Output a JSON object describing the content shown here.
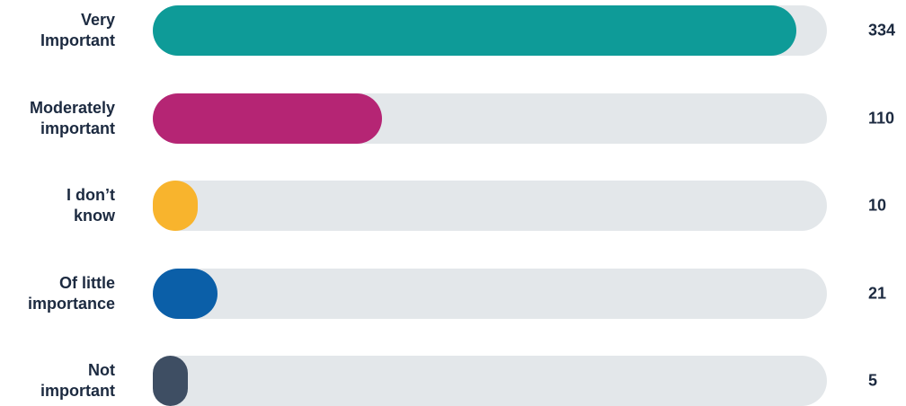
{
  "chart_data": {
    "type": "bar",
    "orientation": "horizontal",
    "categories": [
      "Very\nImportant",
      "Moderately\nimportant",
      "I don’t\nknow",
      "Of little\nimportance",
      "Not\nimportant"
    ],
    "values": [
      334,
      110,
      10,
      21,
      5
    ],
    "colors": [
      "#0e9b98",
      "#b52574",
      "#f8b42d",
      "#0b5fa8",
      "#3e4e63"
    ]
  }
}
